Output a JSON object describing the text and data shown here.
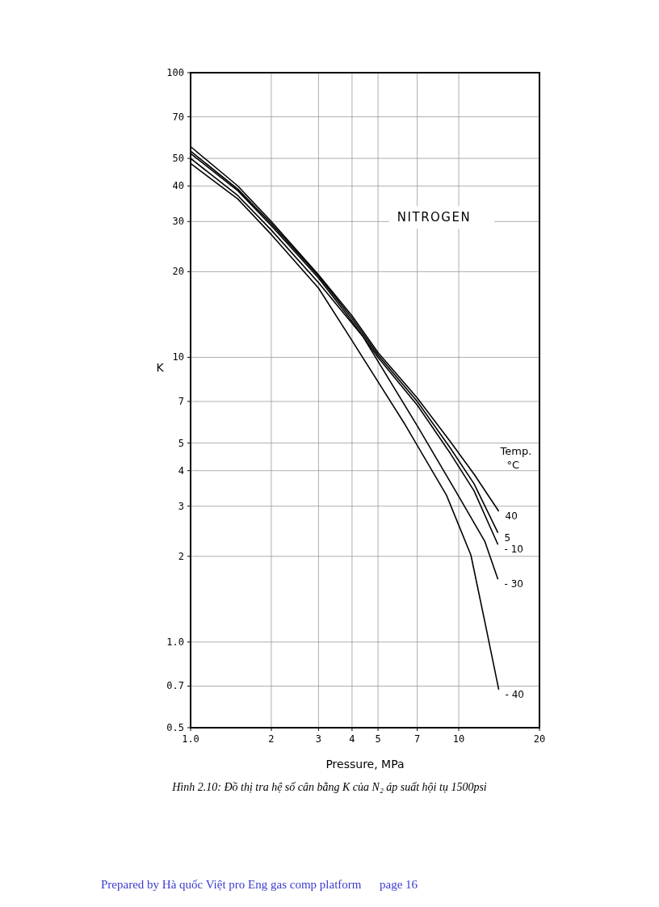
{
  "chart_data": {
    "type": "line",
    "xlabel": "Pressure, MPa",
    "ylabel": "K",
    "legend_title": "Temp. °C",
    "annotations": [
      "NITROGEN",
      "Hình 2.10: Đồ thị tra hệ số cân bằng K của N₂ áp suất hội tụ 1500psi",
      "Prepared by Hà quốc Việt pro Eng gas comp platform      page 16"
    ],
    "log": "xy",
    "grid": true,
    "marker": "none",
    "line_style": "solid",
    "xlim": [
      1,
      20
    ],
    "xticks": [
      {
        "value": 1,
        "label": "1.0"
      },
      2,
      3,
      4,
      5,
      7,
      10,
      20
    ],
    "ylim": [
      0.5,
      100
    ],
    "yticks": [
      {
        "value": 0.5,
        "label": "0.5"
      },
      {
        "value": 0.7,
        "label": "0.7"
      },
      {
        "value": 1,
        "label": "1.0"
      },
      2,
      3,
      4,
      5,
      7,
      10,
      20,
      30,
      40,
      50,
      70,
      100
    ],
    "series": [
      {
        "name": "40",
        "color": "#000000",
        "x": [
          1,
          1.5,
          2,
          3,
          4,
          5,
          7,
          9.3,
          11.4,
          14.1
        ],
        "values": [
          55,
          40,
          30,
          19.5,
          14,
          10.4,
          7.2,
          5.06,
          3.89,
          2.88
        ]
      },
      {
        "name": "5",
        "color": "#000000",
        "x": [
          1,
          1.5,
          2,
          3,
          4,
          5,
          7,
          9.3,
          11.4,
          14
        ],
        "values": [
          53,
          39,
          29.5,
          19.3,
          13.7,
          10.2,
          7,
          4.8,
          3.6,
          2.42
        ]
      },
      {
        "name": "- 10",
        "color": "#000000",
        "x": [
          1,
          1.5,
          2,
          3,
          4,
          5,
          7,
          9.3,
          11.4,
          14
        ],
        "values": [
          52,
          38.5,
          29,
          19,
          13.4,
          10,
          6.8,
          4.6,
          3.4,
          2.2
        ]
      },
      {
        "name": "- 30",
        "color": "#000000",
        "x": [
          1,
          1.5,
          2,
          3,
          4.4,
          7,
          9.9,
          12.5,
          14
        ],
        "values": [
          50,
          37,
          28,
          18.3,
          11.8,
          5.75,
          3.3,
          2.26,
          1.66
        ]
      },
      {
        "name": "- 40",
        "color": "#000000",
        "x": [
          1,
          1.5,
          2,
          3,
          3.92,
          6.24,
          9,
          11.1,
          12.7,
          14.1
        ],
        "values": [
          48,
          36,
          27,
          17.5,
          11.8,
          5.9,
          3.28,
          2.02,
          1.1,
          0.68
        ]
      }
    ]
  }
}
